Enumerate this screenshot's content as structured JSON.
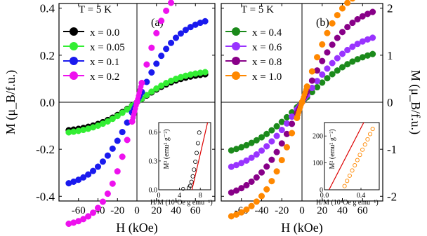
{
  "chart_data": [
    {
      "panel": "(a)",
      "type": "scatter",
      "title": "",
      "xlabel": "H (kOe)",
      "ylabel": "M (μ_B/f.u.)",
      "xlim": [
        -80,
        80
      ],
      "ylim": [
        -0.42,
        0.42
      ],
      "xticks": [
        -60,
        -40,
        -20,
        0,
        20,
        40,
        60
      ],
      "xtick_labels": [
        "-60",
        "-40",
        "-20",
        "0",
        "20",
        "40",
        "60"
      ],
      "yticks": [
        -0.4,
        -0.2,
        0.0,
        0.2,
        0.4
      ],
      "ytick_labels": [
        "-0.4",
        "-0.2",
        "0.0",
        "0.2",
        "0.4"
      ],
      "legend_title": "T = 5 K",
      "legend_position": "top-left",
      "grid": false,
      "series": [
        {
          "name": "x = 0.0",
          "color": "#000000",
          "sat": 0.13,
          "h0": 45
        },
        {
          "name": "x = 0.05",
          "color": "#33ee33",
          "sat": 0.14,
          "h0": 45
        },
        {
          "name": "x = 0.1",
          "color": "#1a1aee",
          "sat": 0.37,
          "h0": 42
        },
        {
          "name": "x = 0.2",
          "color": "#ee11ee",
          "sat": 0.53,
          "h0": 32
        }
      ],
      "inset": {
        "xlabel": "H/M (10⁴Oe g emu⁻¹)",
        "ylabel": "M² (emu² g⁻²)",
        "xlim": [
          0,
          10
        ],
        "ylim": [
          0,
          0.7
        ],
        "xtick_labels": [
          "0",
          "4",
          "8"
        ],
        "ytick_labels": [
          "0.0",
          "0.3",
          "0.6"
        ]
      }
    },
    {
      "panel": "(b)",
      "type": "scatter",
      "title": "",
      "xlabel": "H (kOe)",
      "ylabel": "M (μ_B/f.u.)",
      "xlim": [
        -80,
        80
      ],
      "ylim": [
        -2.1,
        2.1
      ],
      "xticks": [
        -60,
        -40,
        -20,
        0,
        20,
        40,
        60
      ],
      "xtick_labels": [
        "-60",
        "-40",
        "-20",
        "0",
        "20",
        "40",
        "60"
      ],
      "yticks": [
        -2,
        -1,
        0,
        1,
        2
      ],
      "ytick_labels": [
        "-2",
        "-1",
        "0",
        "1",
        "2"
      ],
      "legend_title": "T = 5 K",
      "legend_position": "top-left",
      "grid": false,
      "series": [
        {
          "name": "x = 0.4",
          "color": "#1b8a1b",
          "sat": 1.2,
          "h0": 55
        },
        {
          "name": "x = 0.6",
          "color": "#9933ff",
          "sat": 1.55,
          "h0": 50
        },
        {
          "name": "x = 0.8",
          "color": "#880088",
          "sat": 2.1,
          "h0": 45
        },
        {
          "name": "x = 1.0",
          "color": "#ff8800",
          "sat": 2.55,
          "h0": 38
        }
      ],
      "inset": {
        "xlabel": "H/M (10⁴Oe g emu⁻¹)",
        "ylabel": "M² (emu² g⁻²)",
        "xlim": [
          0,
          0.6
        ],
        "ylim": [
          0,
          250
        ],
        "xtick_labels": [
          "0.0",
          "0.4"
        ],
        "ytick_labels": [
          "0",
          "100",
          "200"
        ]
      }
    }
  ]
}
